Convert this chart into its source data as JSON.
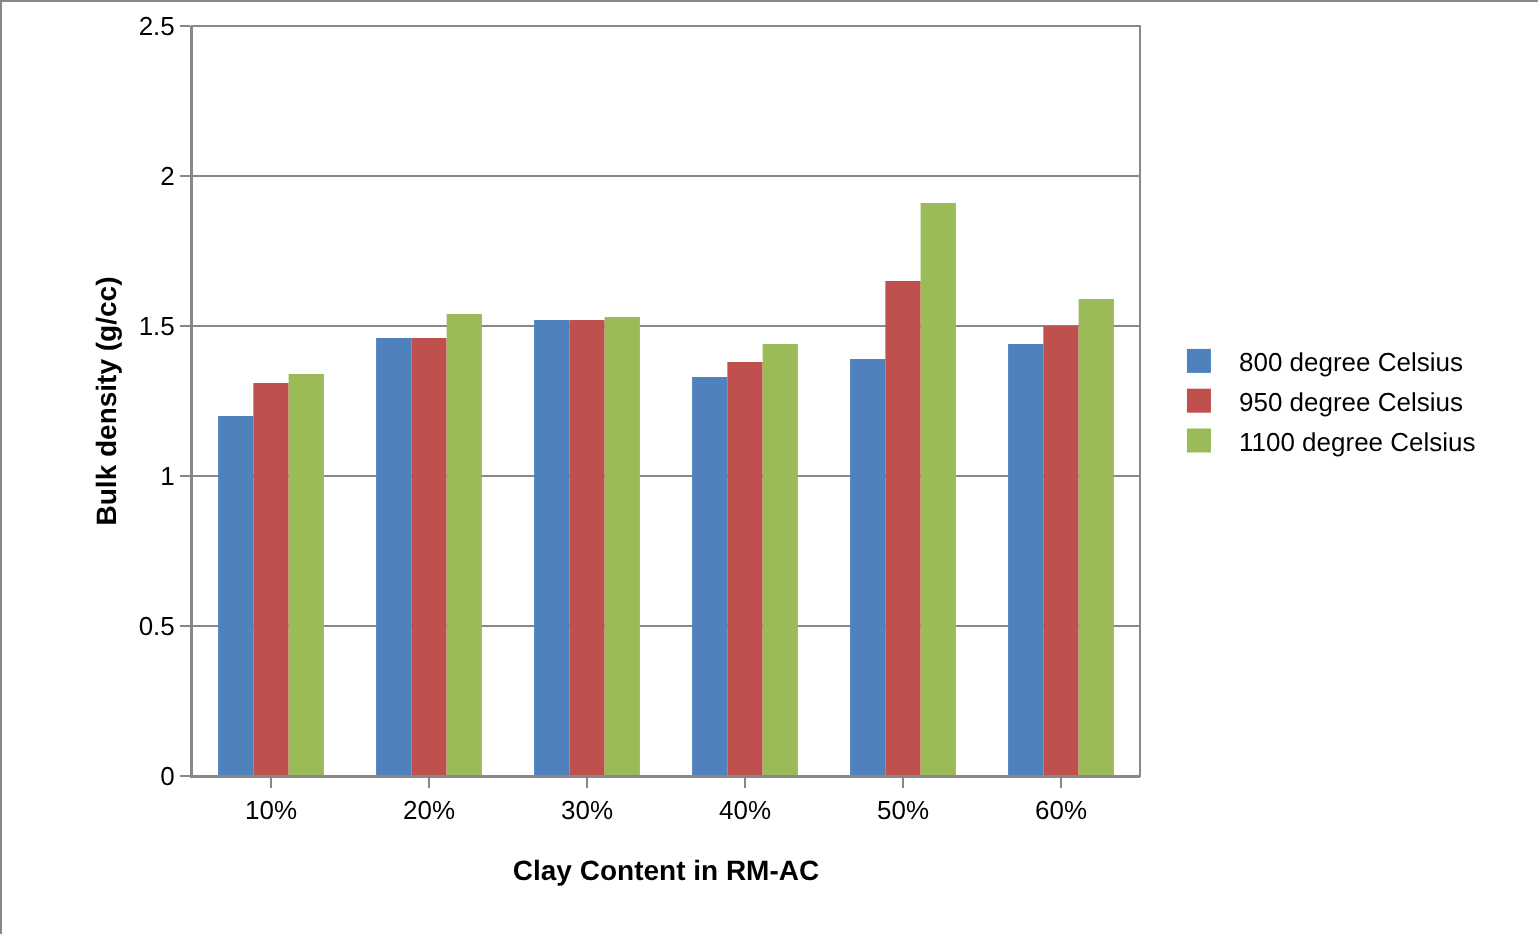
{
  "chart_data": {
    "type": "bar",
    "xlabel": "Clay Content in RM-AC",
    "ylabel": "Bulk density (g/cc)",
    "categories": [
      "10%",
      "20%",
      "30%",
      "40%",
      "50%",
      "60%"
    ],
    "series": [
      {
        "name": "800 degree Celsius",
        "color": "#4f81bd",
        "values": [
          1.2,
          1.46,
          1.52,
          1.33,
          1.39,
          1.44
        ]
      },
      {
        "name": "950 degree Celsius",
        "color": "#c0504d",
        "values": [
          1.31,
          1.46,
          1.52,
          1.38,
          1.65,
          1.5
        ]
      },
      {
        "name": "1100 degree Celsius",
        "color": "#9bbb59",
        "values": [
          1.34,
          1.54,
          1.53,
          1.44,
          1.91,
          1.59
        ]
      }
    ],
    "ylim": [
      0,
      2.5
    ],
    "yticks": [
      0,
      0.5,
      1,
      1.5,
      2,
      2.5
    ],
    "grid": "y",
    "legend": "right"
  }
}
